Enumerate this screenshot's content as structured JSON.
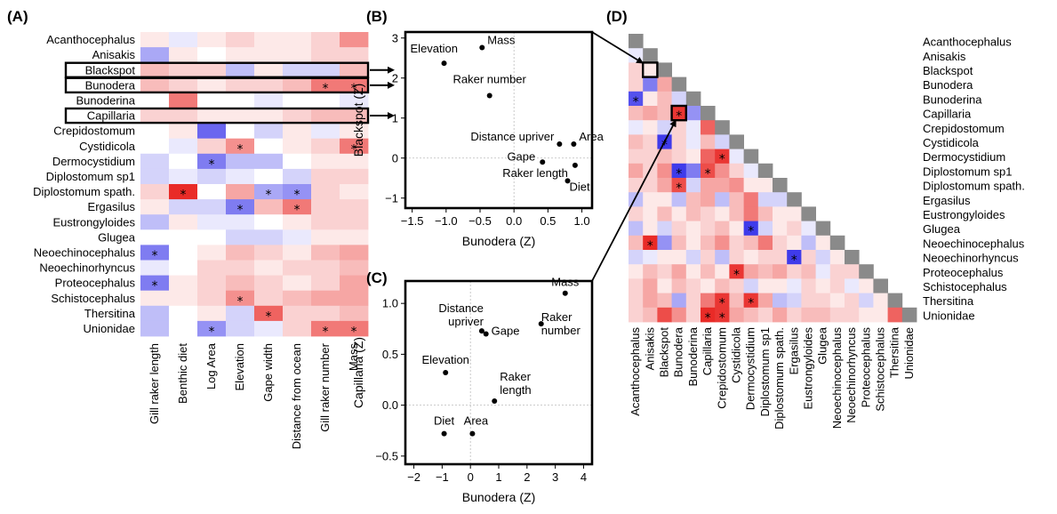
{
  "chart_data": [
    {
      "panel": "(A)",
      "type": "heatmap",
      "rows": [
        "Acanthocephalus",
        "Anisakis",
        "Blackspot",
        "Bunodera",
        "Bunoderina",
        "Capillaria",
        "Crepidostomum",
        "Cystidicola",
        "Dermocystidium",
        "Diplostomum sp1",
        "Diplostomum spath.",
        "Ergasilus",
        "Eustrongyloides",
        "Glugea",
        "Neoechinocephalus",
        "Neoechinorhyncus",
        "Proteocephalus",
        "Schistocephalus",
        "Thersitina",
        "Unionidae"
      ],
      "columns": [
        "Gill raker length",
        "Benthic diet",
        "Log Area",
        "Elevation",
        "Gape width",
        "Distance from ocean",
        "Gill raker number",
        "Mass"
      ],
      "values": [
        [
          0.1,
          -0.1,
          0.1,
          0.2,
          0.1,
          0.1,
          0.2,
          0.5
        ],
        [
          -0.4,
          0.1,
          0.0,
          0.1,
          0.1,
          0.1,
          0.2,
          0.2
        ],
        [
          0.3,
          0.2,
          0.2,
          -0.3,
          0.1,
          -0.2,
          -0.2,
          0.3
        ],
        [
          0.3,
          0.2,
          0.1,
          0.2,
          0.2,
          0.3,
          0.6,
          0.6
        ],
        [
          0.0,
          0.6,
          0.0,
          0.0,
          -0.1,
          0.0,
          0.0,
          -0.1
        ],
        [
          0.2,
          0.2,
          0.1,
          0.1,
          0.1,
          0.2,
          0.3,
          0.3
        ],
        [
          0.0,
          0.1,
          -0.7,
          0.0,
          -0.2,
          0.1,
          -0.1,
          0.1
        ],
        [
          0.0,
          -0.1,
          0.2,
          0.5,
          0.0,
          0.1,
          0.2,
          0.6
        ],
        [
          -0.2,
          0.0,
          -0.6,
          -0.3,
          -0.3,
          0.0,
          0.1,
          0.1
        ],
        [
          -0.2,
          -0.1,
          -0.2,
          -0.1,
          0.0,
          -0.2,
          0.2,
          0.2
        ],
        [
          0.2,
          0.95,
          0.0,
          0.4,
          -0.4,
          -0.5,
          0.2,
          0.1
        ],
        [
          0.1,
          -0.2,
          -0.2,
          -0.6,
          0.3,
          0.6,
          0.2,
          0.2
        ],
        [
          -0.3,
          0.1,
          -0.1,
          -0.1,
          0.0,
          0.1,
          0.2,
          0.2
        ],
        [
          0.0,
          0.0,
          0.0,
          -0.2,
          -0.2,
          -0.1,
          0.1,
          0.1
        ],
        [
          -0.6,
          0.0,
          0.1,
          0.3,
          0.2,
          0.1,
          0.3,
          0.4
        ],
        [
          -0.1,
          0.0,
          0.2,
          0.2,
          0.1,
          0.2,
          0.2,
          0.3
        ],
        [
          -0.6,
          0.1,
          0.2,
          0.3,
          0.2,
          0.1,
          0.2,
          0.4
        ],
        [
          0.1,
          0.1,
          0.2,
          0.5,
          0.2,
          0.3,
          0.4,
          0.4
        ],
        [
          -0.3,
          0.0,
          0.1,
          -0.2,
          0.7,
          0.2,
          0.2,
          0.3
        ],
        [
          -0.3,
          0.0,
          -0.5,
          -0.2,
          -0.1,
          0.2,
          0.6,
          0.6
        ]
      ],
      "stars": [
        [
          3,
          6
        ],
        [
          3,
          7
        ],
        [
          7,
          3
        ],
        [
          7,
          7
        ],
        [
          8,
          2
        ],
        [
          10,
          1
        ],
        [
          10,
          4
        ],
        [
          10,
          5
        ],
        [
          11,
          3
        ],
        [
          11,
          5
        ],
        [
          14,
          0
        ],
        [
          16,
          0
        ],
        [
          17,
          3
        ],
        [
          18,
          4
        ],
        [
          19,
          2
        ],
        [
          19,
          6
        ],
        [
          19,
          7
        ]
      ],
      "highlighted_rows": [
        "Blackspot",
        "Bunodera",
        "Capillaria"
      ]
    },
    {
      "panel": "(B)",
      "type": "scatter",
      "xlabel": "Bunodera (Z)",
      "ylabel": "Blackspot (Z)",
      "xlim": [
        -1.6,
        1.15
      ],
      "ylim": [
        -1.25,
        3.15
      ],
      "xticks": [
        -1.5,
        -1.0,
        -0.5,
        0.0,
        0.5,
        1.0
      ],
      "xtick_labels": [
        "−1.5",
        "−1.0",
        "−0.5",
        "0.0",
        "0.5",
        "1.0"
      ],
      "yticks": [
        -1,
        0,
        1,
        2,
        3
      ],
      "ytick_labels": [
        "−1",
        "0",
        "1",
        "2",
        "3"
      ],
      "points": [
        {
          "label": "Mass",
          "x": -0.47,
          "y": 2.76,
          "anchor": "start",
          "dx": 6,
          "dy": -4
        },
        {
          "label": "Elevation",
          "x": -1.03,
          "y": 2.37,
          "anchor": "start",
          "dx": -38,
          "dy": -12
        },
        {
          "label": "Raker number",
          "x": -0.36,
          "y": 1.56,
          "anchor": "middle",
          "dx": 0,
          "dy": -14
        },
        {
          "label": "Distance upriver",
          "x": 0.67,
          "y": 0.35,
          "anchor": "end",
          "dx": -6,
          "dy": -4
        },
        {
          "label": "Area",
          "x": 0.88,
          "y": 0.35,
          "anchor": "start",
          "dx": 6,
          "dy": -4
        },
        {
          "label": "Gape",
          "x": 0.42,
          "y": -0.1,
          "anchor": "end",
          "dx": -8,
          "dy": -2
        },
        {
          "label": "Raker length",
          "x": 0.9,
          "y": -0.18,
          "anchor": "end",
          "dx": -8,
          "dy": 13
        },
        {
          "label": "Diet",
          "x": 0.79,
          "y": -0.57,
          "anchor": "start",
          "dx": 2,
          "dy": 11
        }
      ]
    },
    {
      "panel": "(C)",
      "type": "scatter",
      "xlabel": "Bunodera (Z)",
      "ylabel": "Capillaria (Z)",
      "xlim": [
        -2.3,
        4.3
      ],
      "ylim": [
        -0.58,
        1.22
      ],
      "xticks": [
        -2,
        -1,
        0,
        1,
        2,
        3,
        4
      ],
      "xtick_labels": [
        "−2",
        "−1",
        "0",
        "1",
        "2",
        "3",
        "4"
      ],
      "yticks": [
        -0.5,
        0.0,
        0.5,
        1.0
      ],
      "ytick_labels": [
        "−0.5",
        "0.0",
        "0.5",
        "1.0"
      ],
      "points": [
        {
          "label": "Mass",
          "x": 3.35,
          "y": 1.1,
          "anchor": "middle",
          "dx": 0,
          "dy": -8
        },
        {
          "label": "Distance upriver",
          "x": 0.4,
          "y": 0.73,
          "anchor": "end",
          "dx": 2,
          "dy": -6
        },
        {
          "label": "Gape",
          "x": 0.55,
          "y": 0.7,
          "anchor": "start",
          "dx": 6,
          "dy": 1
        },
        {
          "label": "Raker number",
          "x": 2.5,
          "y": 0.8,
          "anchor": "start",
          "dx": 0,
          "dy": 12
        },
        {
          "label": "Elevation",
          "x": -0.88,
          "y": 0.32,
          "anchor": "middle",
          "dx": 0,
          "dy": -10
        },
        {
          "label": "Raker length",
          "x": 0.85,
          "y": 0.04,
          "anchor": "start",
          "dx": 6,
          "dy": -8
        },
        {
          "label": "Diet",
          "x": -0.93,
          "y": -0.28,
          "anchor": "middle",
          "dx": 0,
          "dy": -10
        },
        {
          "label": "Area",
          "x": 0.07,
          "y": -0.28,
          "anchor": "middle",
          "dx": 4,
          "dy": -10
        }
      ]
    },
    {
      "panel": "(D)",
      "type": "heatmap",
      "taxa": [
        "Acanthocephalus",
        "Anisakis",
        "Blackspot",
        "Bunodera",
        "Bunoderina",
        "Capillaria",
        "Crepidostomum",
        "Cystidicola",
        "Dermocystidium",
        "Diplostomum sp1",
        "Diplostomum spath.",
        "Ergasilus",
        "Eustrongyloides",
        "Glugea",
        "Neoechinocephalus",
        "Neoechinorhyncus",
        "Proteocephalus",
        "Schistocephalus",
        "Thersitina",
        "Unionidae"
      ],
      "lower_values": [
        [],
        [
          -0.1
        ],
        [
          0.2,
          0.1
        ],
        [
          0.2,
          -0.6,
          0.4
        ],
        [
          -0.8,
          0.1,
          0.3,
          -0.2
        ],
        [
          0.3,
          0.4,
          0.3,
          0.9,
          -0.5
        ],
        [
          -0.1,
          0.1,
          -0.2,
          0.2,
          -0.1,
          0.7
        ],
        [
          0.3,
          0.2,
          -0.9,
          0.2,
          -0.1,
          0.3,
          -0.2
        ],
        [
          0.2,
          0.2,
          0.3,
          0.2,
          0.1,
          0.7,
          0.9,
          -0.1
        ],
        [
          0.4,
          0.2,
          0.5,
          -0.9,
          -0.6,
          0.8,
          0.5,
          0.2,
          -0.1
        ],
        [
          0.2,
          0.2,
          0.4,
          0.8,
          -0.2,
          0.4,
          0.4,
          0.5,
          0.1,
          0.1
        ],
        [
          -0.3,
          0.1,
          0.1,
          -0.3,
          0.3,
          0.4,
          -0.3,
          0.3,
          0.6,
          -0.2,
          -0.2
        ],
        [
          0.2,
          0.1,
          0.3,
          0.1,
          0.3,
          0.2,
          0.1,
          0.3,
          0.6,
          0.3,
          0.1,
          0.1
        ],
        [
          -0.3,
          0.1,
          -0.2,
          0.2,
          0.1,
          0.2,
          0.3,
          0.1,
          -0.9,
          -0.2,
          0.1,
          0.2,
          -0.1
        ],
        [
          0.3,
          0.95,
          -0.5,
          0.3,
          0.1,
          0.3,
          0.5,
          0.2,
          0.3,
          0.6,
          0.2,
          0.1,
          -0.3,
          0.1
        ],
        [
          -0.2,
          -0.1,
          0.1,
          0.1,
          -0.2,
          0.2,
          -0.3,
          0.2,
          0.1,
          0.2,
          0.2,
          -0.9,
          0.2,
          -0.2,
          0.1
        ],
        [
          0.1,
          0.3,
          0.2,
          0.4,
          0.1,
          0.3,
          0.1,
          0.9,
          0.4,
          0.3,
          0.4,
          0.2,
          0.3,
          -0.1,
          0.2,
          0.2
        ],
        [
          0.2,
          0.4,
          0.1,
          0.3,
          0.2,
          0.1,
          0.3,
          0.2,
          -0.2,
          0.1,
          0.1,
          -0.1,
          0.2,
          0.1,
          0.2,
          -0.1,
          0.1
        ],
        [
          0.2,
          0.4,
          0.3,
          -0.4,
          0.2,
          0.6,
          0.9,
          0.3,
          0.9,
          0.4,
          -0.3,
          -0.2,
          0.2,
          0.2,
          0.1,
          0.2,
          -0.2,
          0.1
        ],
        [
          0.2,
          0.3,
          0.8,
          0.5,
          0.2,
          0.95,
          0.9,
          0.4,
          0.3,
          0.2,
          0.4,
          0.2,
          0.3,
          0.3,
          0.2,
          0.2,
          0.1,
          0.1,
          0.7
        ]
      ],
      "stars": [
        [
          4,
          0
        ],
        [
          5,
          3
        ],
        [
          7,
          2
        ],
        [
          8,
          6
        ],
        [
          9,
          3
        ],
        [
          9,
          5
        ],
        [
          10,
          3
        ],
        [
          13,
          8
        ],
        [
          14,
          1
        ],
        [
          15,
          11
        ],
        [
          16,
          7
        ],
        [
          18,
          6
        ],
        [
          18,
          8
        ],
        [
          19,
          5
        ],
        [
          19,
          6
        ]
      ],
      "highlighted_cells": [
        [
          2,
          1
        ],
        [
          5,
          3
        ]
      ]
    }
  ],
  "star_symbol": "*",
  "colors": {
    "positive": "#e8201c",
    "negative": "#2a25e8",
    "neutral": "#ffffff",
    "diagonal": "#8a8a8a"
  }
}
